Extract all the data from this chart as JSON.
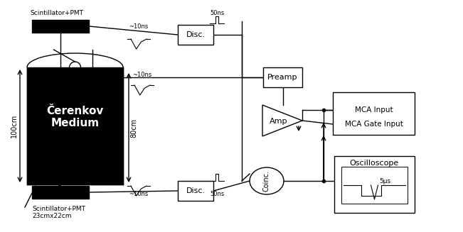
{
  "bg_color": "#f0f0f0",
  "line_color": "#000000",
  "box_fill": "#ffffff",
  "cherenkov_fill": "#000000",
  "cherenkov_text": "#ffffff",
  "scintillator_fill": "#000000",
  "fig_width": 6.51,
  "fig_height": 3.27,
  "dpi": 100,
  "cherenkov_label": "Čerenkov\nMedium",
  "top_scint_label": "Scintillator+PMT",
  "bot_scint_label": "Scintillator+PMT\n23cmx22cm",
  "disc_label": "Disc.",
  "preamp_label": "Preamp",
  "amp_label": "Amp",
  "coinc_label": "Coinc.",
  "mca_input_label": "MCA Input",
  "mca_gate_label": "MCA Gate Input",
  "osc_label": "Oscilloscope",
  "label_10ns_top": "~10ns",
  "label_50ns_top": "50ns",
  "label_10ns_mid": "~10ns",
  "label_10ns_bot": "~10ns",
  "label_50ns_bot": "50ns",
  "label_100cm": "100cm",
  "label_80cm": "80cm",
  "label_5us": "5μs"
}
